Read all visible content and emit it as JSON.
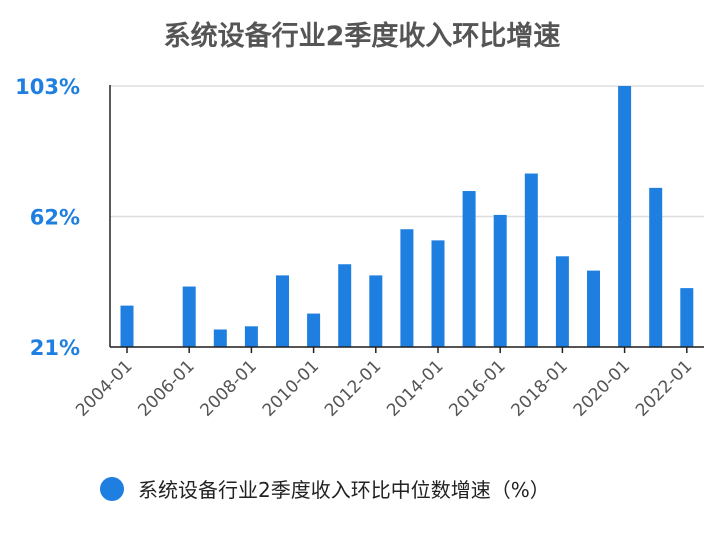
{
  "colors": {
    "bar": "#1f7fe0",
    "axis_label": "#1f7fe0",
    "tick_label": "#555555",
    "grid": "#dddddd"
  },
  "chart_data": {
    "type": "bar",
    "title": "系统设备行业2季度收入环比增速",
    "categories": [
      "2004-01",
      "2005-01",
      "2006-01",
      "2007-01",
      "2008-01",
      "2009-01",
      "2010-01",
      "2011-01",
      "2012-01",
      "2013-01",
      "2014-01",
      "2015-01",
      "2016-01",
      "2017-01",
      "2018-01",
      "2019-01",
      "2020-01",
      "2021-01",
      "2022-01"
    ],
    "x_tick_labels": [
      "2004-01",
      "2006-01",
      "2008-01",
      "2010-01",
      "2012-01",
      "2014-01",
      "2016-01",
      "2018-01",
      "2020-01",
      "2022-01"
    ],
    "series": [
      {
        "name": "系统设备行业2季度收入环比中位数增速（%）",
        "values": [
          34,
          null,
          40,
          26.5,
          27.5,
          43.5,
          31.5,
          47,
          43.5,
          58,
          54.5,
          70,
          62.5,
          75.5,
          49.5,
          45,
          103,
          71,
          39.5
        ]
      }
    ],
    "y_tick_labels": [
      "103%",
      "62%",
      "21%"
    ],
    "y_ticks": [
      103,
      62,
      21
    ],
    "ylim": [
      21,
      103
    ],
    "grid": true,
    "legend_position": "bottom"
  }
}
